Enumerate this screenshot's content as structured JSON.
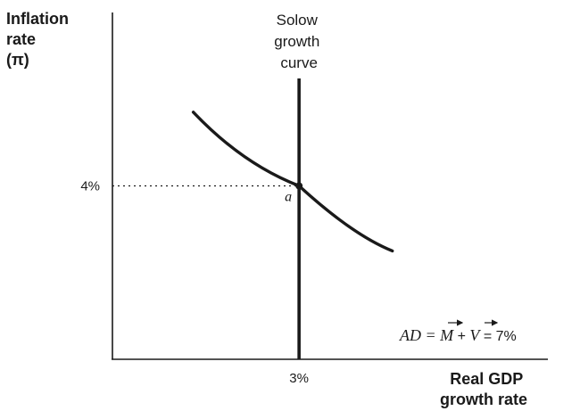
{
  "chart_data": {
    "type": "line",
    "xlabel": [
      "Real GDP",
      "growth rate"
    ],
    "ylabel": [
      "Inflation",
      "rate",
      "(π)"
    ],
    "x_tick_label": "3%",
    "y_tick_label": "4%",
    "x_tick_value": 3,
    "y_tick_value": 4,
    "xlim": [
      0,
      7
    ],
    "ylim": [
      0,
      8
    ],
    "series": [
      {
        "name": "Solow growth curve",
        "label_lines": [
          "Solow",
          "growth",
          "curve"
        ],
        "kind": "vertical",
        "x": 3
      },
      {
        "name": "AD = M + V = 7%",
        "kind": "ad-curve",
        "equation": "x + y = 7",
        "x_range": [
          1.3,
          4.5
        ]
      }
    ],
    "ad_label": {
      "prefix": "AD = ",
      "m": "M",
      "plus": " + ",
      "v": "V",
      "suffix": " = 7%"
    },
    "annotations": [
      {
        "label": "a",
        "x": 3,
        "y": 4
      }
    ],
    "grid": false
  }
}
